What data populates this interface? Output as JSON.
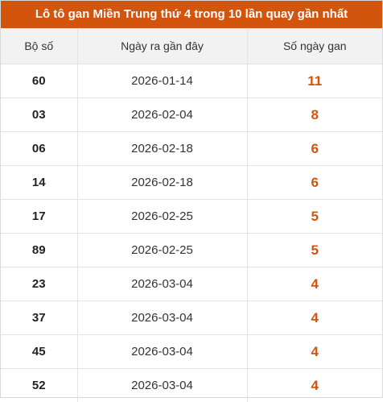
{
  "title": "Lô tô gan Miền Trung thứ 4 trong 10 lần quay gần nhất",
  "headers": [
    "Bộ số",
    "Ngày ra gần đây",
    "Số ngày gan"
  ],
  "rows": [
    {
      "number": "60",
      "date": "2026-01-14",
      "days": "11"
    },
    {
      "number": "03",
      "date": "2026-02-04",
      "days": "8"
    },
    {
      "number": "06",
      "date": "2026-02-18",
      "days": "6"
    },
    {
      "number": "14",
      "date": "2026-02-18",
      "days": "6"
    },
    {
      "number": "17",
      "date": "2026-02-25",
      "days": "5"
    },
    {
      "number": "89",
      "date": "2026-02-25",
      "days": "5"
    },
    {
      "number": "23",
      "date": "2026-03-04",
      "days": "4"
    },
    {
      "number": "37",
      "date": "2026-03-04",
      "days": "4"
    },
    {
      "number": "45",
      "date": "2026-03-04",
      "days": "4"
    },
    {
      "number": "52",
      "date": "2026-03-04",
      "days": "4"
    }
  ],
  "colors": {
    "accent": "#d3540c",
    "header_bg": "#f2f2f2",
    "border": "#e3e3e3"
  }
}
